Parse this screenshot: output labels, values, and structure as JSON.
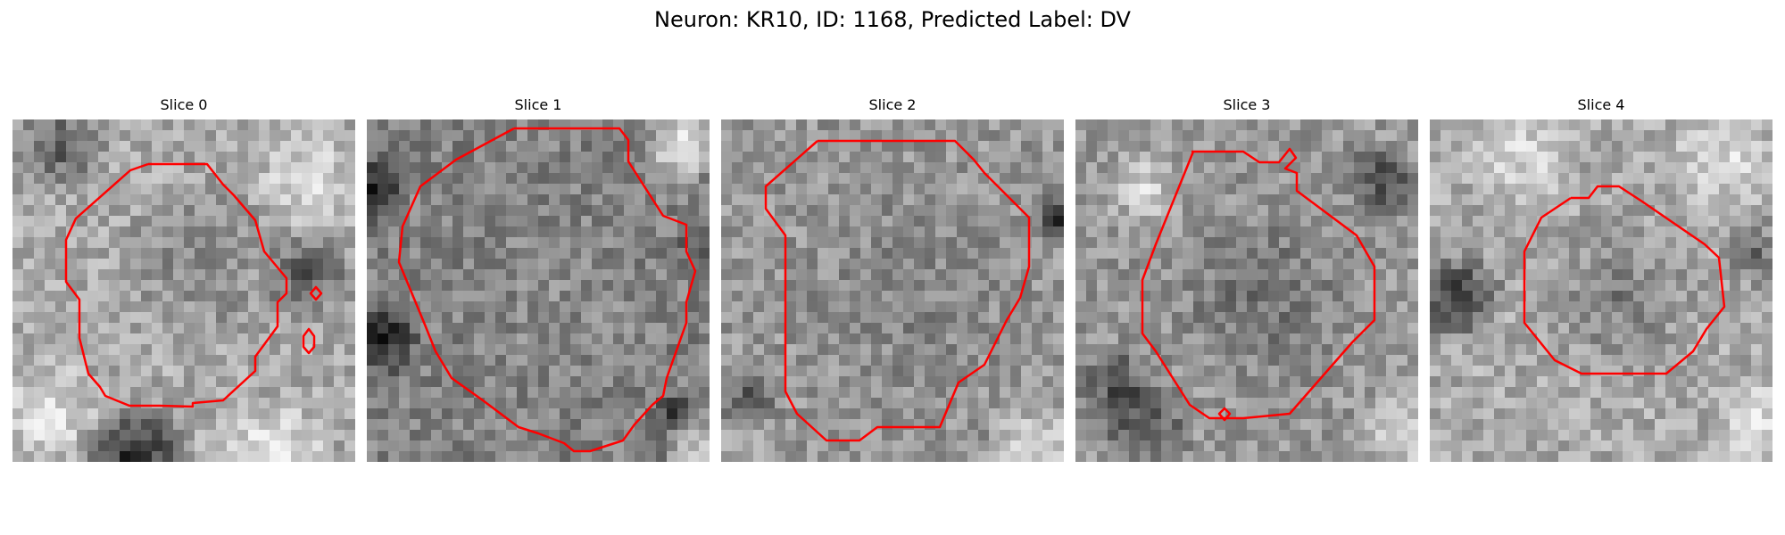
{
  "figure": {
    "title": "Neuron: KR10, ID: 1168, Predicted Label: DV"
  },
  "panels": [
    {
      "title": "Slice 0",
      "contour_color": "#ff0000"
    },
    {
      "title": "Slice 1",
      "contour_color": "#ff0000"
    },
    {
      "title": "Slice 2",
      "contour_color": "#ff0000"
    },
    {
      "title": "Slice 3",
      "contour_color": "#ff0000"
    },
    {
      "title": "Slice 4",
      "contour_color": "#ff0000"
    }
  ],
  "colors": {
    "background": "#ffffff",
    "text": "#000000"
  }
}
